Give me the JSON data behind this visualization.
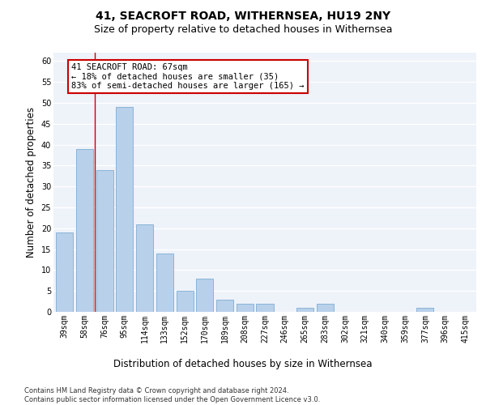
{
  "title": "41, SEACROFT ROAD, WITHERNSEA, HU19 2NY",
  "subtitle": "Size of property relative to detached houses in Withernsea",
  "xlabel": "Distribution of detached houses by size in Withernsea",
  "ylabel": "Number of detached properties",
  "categories": [
    "39sqm",
    "58sqm",
    "76sqm",
    "95sqm",
    "114sqm",
    "133sqm",
    "152sqm",
    "170sqm",
    "189sqm",
    "208sqm",
    "227sqm",
    "246sqm",
    "265sqm",
    "283sqm",
    "302sqm",
    "321sqm",
    "340sqm",
    "359sqm",
    "377sqm",
    "396sqm",
    "415sqm"
  ],
  "values": [
    19,
    39,
    34,
    49,
    21,
    14,
    5,
    8,
    3,
    2,
    2,
    0,
    1,
    2,
    0,
    0,
    0,
    0,
    1,
    0,
    0
  ],
  "bar_color": "#b8d0ea",
  "bar_edge_color": "#7eadd4",
  "vline_x": 1.5,
  "vline_color": "#cc0000",
  "annotation_text": "41 SEACROFT ROAD: 67sqm\n← 18% of detached houses are smaller (35)\n83% of semi-detached houses are larger (165) →",
  "annotation_box_color": "#ffffff",
  "annotation_box_edge_color": "#cc0000",
  "ylim": [
    0,
    62
  ],
  "yticks": [
    0,
    5,
    10,
    15,
    20,
    25,
    30,
    35,
    40,
    45,
    50,
    55,
    60
  ],
  "footer_text": "Contains HM Land Registry data © Crown copyright and database right 2024.\nContains public sector information licensed under the Open Government Licence v3.0.",
  "bg_color": "#eef2f9",
  "grid_color": "#ffffff",
  "title_fontsize": 10,
  "subtitle_fontsize": 9,
  "axis_label_fontsize": 8.5,
  "tick_fontsize": 7,
  "annotation_fontsize": 7.5,
  "footer_fontsize": 6
}
